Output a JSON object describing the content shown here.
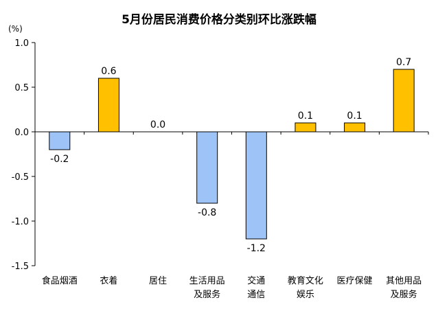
{
  "chart_data": {
    "type": "bar",
    "title": "5月份居民消费价格分类别环比涨跌幅",
    "unit_label": "(%)",
    "categories": [
      [
        "食品烟酒"
      ],
      [
        "衣着"
      ],
      [
        "居住"
      ],
      [
        "生活用品",
        "及服务"
      ],
      [
        "交通",
        "通信"
      ],
      [
        "教育文化",
        "娱乐"
      ],
      [
        "医疗保健"
      ],
      [
        "其他用品",
        "及服务"
      ]
    ],
    "values": [
      -0.2,
      0.6,
      0.0,
      -0.8,
      -1.2,
      0.1,
      0.1,
      0.7
    ],
    "value_labels": [
      "-0.2",
      "0.6",
      "0.0",
      "-0.8",
      "-1.2",
      "0.1",
      "0.1",
      "0.7"
    ],
    "ylim": [
      -1.5,
      1.0
    ],
    "yticks": [
      1.0,
      0.5,
      0.0,
      -0.5,
      -1.0,
      -1.5
    ],
    "ytick_labels": [
      "1.0",
      "0.5",
      "0.0",
      "-0.5",
      "-1.0",
      "-1.5"
    ],
    "xlabel": "",
    "ylabel": "",
    "grid": false,
    "colors": {
      "positive_fill": "#FFC000",
      "negative_fill": "#9DC3F7",
      "bar_stroke": "#000000",
      "axis": "#000000",
      "text": "#000000"
    }
  }
}
